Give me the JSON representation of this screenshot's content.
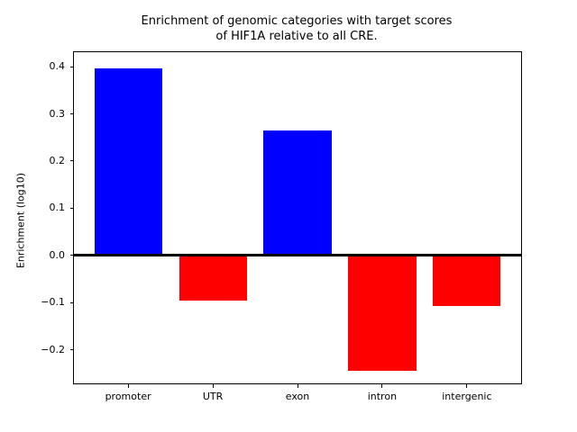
{
  "figure": {
    "background": "#ffffff"
  },
  "chart_data": {
    "type": "bar",
    "title": "Enrichment of genomic categories with target scores\nof HIF1A relative to all CRE.",
    "title_lines": [
      "Enrichment of genomic categories with target scores",
      "of HIF1A relative to all CRE."
    ],
    "categories": [
      "promoter",
      "UTR",
      "exon",
      "intron",
      "intergenic"
    ],
    "values": [
      0.397,
      -0.096,
      0.264,
      -0.244,
      -0.107
    ],
    "bar_colors": [
      "#0000ff",
      "#ff0000",
      "#0000ff",
      "#ff0000",
      "#ff0000"
    ],
    "positive_color": "#0000ff",
    "negative_color": "#ff0000",
    "xlabel": "",
    "ylabel": "Enrichment (log10)",
    "yticks": [
      0.4,
      0.3,
      0.2,
      0.1,
      0.0,
      -0.1,
      -0.2
    ],
    "ylim": [
      -0.2715,
      0.4307
    ],
    "xlim": [
      -0.64,
      4.64
    ],
    "bar_width": 0.8,
    "baseline": {
      "y": 0,
      "color": "#000000"
    },
    "grid": false,
    "legend_position": "none"
  }
}
